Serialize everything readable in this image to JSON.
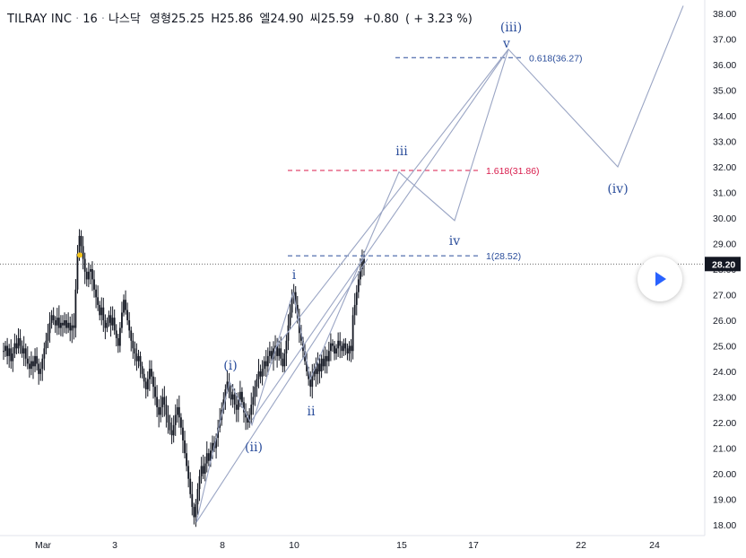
{
  "header": {
    "symbol": "TILRAY INC",
    "interval": "16",
    "exchange": "나스닥",
    "open_label": "영형",
    "open": "25.25",
    "high_label": "H",
    "high": "25.86",
    "low_label": "엘",
    "low": "24.90",
    "close_label": "씨",
    "close": "25.59",
    "change": "+0.80",
    "change_pct": "( + 3.23 %)"
  },
  "chart_data": {
    "type": "candlestick",
    "ylim": [
      17.7,
      38.3
    ],
    "y_ticks": [
      "18.00",
      "19.00",
      "20.00",
      "21.00",
      "22.00",
      "23.00",
      "24.00",
      "25.00",
      "26.00",
      "27.00",
      "28.00",
      "29.00",
      "30.00",
      "31.00",
      "32.00",
      "33.00",
      "34.00",
      "35.00",
      "36.00",
      "37.00",
      "38.00"
    ],
    "x_ticks": [
      "Mar",
      "3",
      "8",
      "10",
      "15",
      "17",
      "22",
      "24"
    ],
    "last_price": "28.20",
    "fib_levels": [
      {
        "label": "0.618(36.27)",
        "value": 36.27,
        "color": "#2a4d9b"
      },
      {
        "label": "1.618(31.86)",
        "value": 31.86,
        "color": "#d81b4b"
      },
      {
        "label": "1(28.52)",
        "value": 28.52,
        "color": "#2a4d9b"
      }
    ],
    "wave_labels": [
      "(i)",
      "(ii)",
      "i",
      "ii",
      "iii",
      "iv",
      "v",
      "(iii)",
      "(iv)"
    ],
    "wave_path_values": [
      18.1,
      23.6,
      21.9,
      27.1,
      23.7,
      31.8,
      29.9,
      36.6,
      32.0,
      38.3
    ],
    "channel_values": {
      "lower": [
        18.1,
        28.4
      ],
      "upper": [
        22.1,
        36.6
      ]
    },
    "price_series": [
      24.8,
      25.0,
      24.6,
      24.9,
      24.4,
      24.7,
      25.1,
      24.9,
      25.3,
      25.0,
      24.7,
      24.9,
      24.5,
      24.3,
      24.1,
      24.4,
      24.2,
      24.6,
      24.3,
      23.9,
      24.1,
      24.5,
      24.9,
      25.2,
      25.5,
      25.9,
      26.2,
      26.0,
      25.8,
      26.1,
      25.7,
      25.9,
      25.8,
      26.0,
      25.7,
      25.9,
      25.6,
      25.8,
      25.7,
      27.2,
      28.6,
      29.3,
      28.9,
      28.4,
      27.9,
      27.6,
      27.9,
      28.0,
      27.6,
      27.2,
      26.9,
      26.6,
      26.2,
      26.5,
      26.0,
      25.7,
      25.9,
      26.2,
      25.8,
      26.1,
      25.6,
      25.3,
      25.0,
      25.7,
      26.3,
      26.8,
      26.4,
      26.0,
      25.6,
      25.2,
      24.9,
      24.7,
      24.4,
      24.6,
      24.2,
      23.9,
      23.6,
      23.3,
      23.7,
      24.1,
      23.8,
      23.4,
      23.0,
      22.6,
      22.3,
      22.6,
      23.0,
      22.7,
      22.3,
      22.0,
      21.7,
      21.5,
      21.9,
      22.3,
      22.6,
      22.2,
      21.8,
      21.3,
      20.8,
      20.3,
      19.8,
      19.2,
      18.7,
      18.3,
      18.8,
      19.4,
      19.9,
      20.3,
      20.0,
      20.4,
      20.8,
      20.5,
      20.9,
      21.2,
      21.0,
      21.4,
      21.8,
      22.1,
      22.5,
      22.9,
      23.3,
      23.6,
      23.2,
      22.9,
      23.1,
      22.7,
      22.5,
      22.9,
      23.2,
      22.8,
      22.4,
      22.2,
      22.0,
      22.3,
      22.7,
      23.0,
      23.4,
      23.7,
      24.0,
      23.8,
      24.1,
      24.4,
      24.2,
      24.6,
      24.8,
      24.5,
      24.9,
      25.0,
      24.6,
      24.9,
      24.5,
      24.2,
      24.7,
      25.2,
      25.8,
      26.3,
      26.9,
      27.1,
      26.6,
      26.1,
      25.5,
      25.2,
      24.8,
      24.4,
      24.0,
      23.7,
      23.4,
      23.8,
      24.1,
      23.9,
      24.3,
      24.0,
      24.5,
      24.2,
      24.6,
      24.4,
      24.8,
      25.1,
      25.0,
      24.7,
      24.9,
      25.2,
      25.0,
      24.8,
      25.1,
      24.9,
      24.7,
      25.0,
      24.8,
      26.2,
      26.6,
      27.1,
      27.6,
      28.0,
      28.4,
      28.2
    ]
  },
  "status_colors": {
    "line": "#9aa5c4",
    "label": "#2a4d9b",
    "fib_blue": "#2a4d9b",
    "fib_red": "#d81b4b"
  }
}
